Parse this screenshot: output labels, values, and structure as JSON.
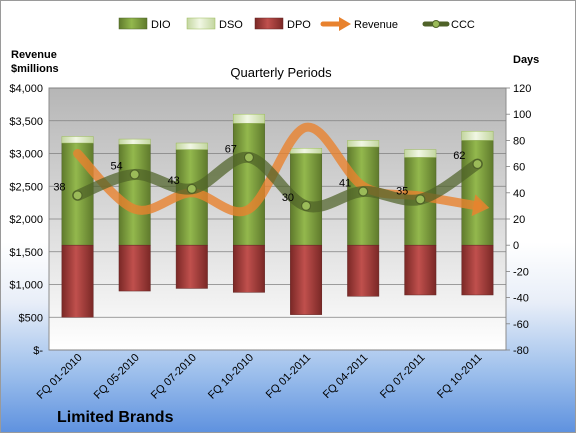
{
  "chart_data": {
    "type": "bar",
    "title": "Quarterly Periods",
    "company": "Limited Brands",
    "y_left_label_line1": "Revenue",
    "y_left_label_line2": "$millions",
    "y_right_label": "Days",
    "y_left_lim": [
      0,
      4000
    ],
    "y_left_ticks": [
      "$-",
      "$500",
      "$1,000",
      "$1,500",
      "$2,000",
      "$2,500",
      "$3,000",
      "$3,500",
      "$4,000"
    ],
    "y_right_lim": [
      -80,
      120
    ],
    "y_right_ticks": [
      "-80",
      "-60",
      "-40",
      "-20",
      "0",
      "20",
      "40",
      "60",
      "80",
      "100",
      "120"
    ],
    "grid": true,
    "legend_position": "top",
    "categories": [
      "FQ 01-2010",
      "FQ 05-2010",
      "FQ 07-2010",
      "FQ 10-2010",
      "FQ 01-2011",
      "FQ 04-2011",
      "FQ 07-2011",
      "FQ 10-2011"
    ],
    "series": [
      {
        "name": "DIO",
        "kind": "bar",
        "axis": "right",
        "color": "#77933c",
        "values": [
          78,
          77,
          73,
          93,
          70,
          75,
          67,
          80
        ]
      },
      {
        "name": "DSO",
        "kind": "bar",
        "axis": "right",
        "color": "#d7e4bd",
        "values": [
          5,
          4,
          5,
          7,
          4,
          5,
          6,
          7
        ]
      },
      {
        "name": "DPO",
        "kind": "bar",
        "axis": "right",
        "color": "#953735",
        "values": [
          -55,
          -35,
          -33,
          -36,
          -53,
          -39,
          -38,
          -38
        ]
      },
      {
        "name": "Revenue",
        "kind": "line",
        "axis": "left",
        "color": "#e8822e",
        "values": [
          3000,
          2150,
          2400,
          2150,
          3400,
          2500,
          2350,
          2200
        ]
      },
      {
        "name": "CCC",
        "kind": "line",
        "axis": "right",
        "color": "#4f6228",
        "values": [
          38,
          54,
          43,
          67,
          30,
          41,
          35,
          62
        ],
        "labels": [
          "38",
          "54",
          "43",
          "67",
          "30",
          "41",
          "35",
          "62"
        ]
      }
    ]
  }
}
